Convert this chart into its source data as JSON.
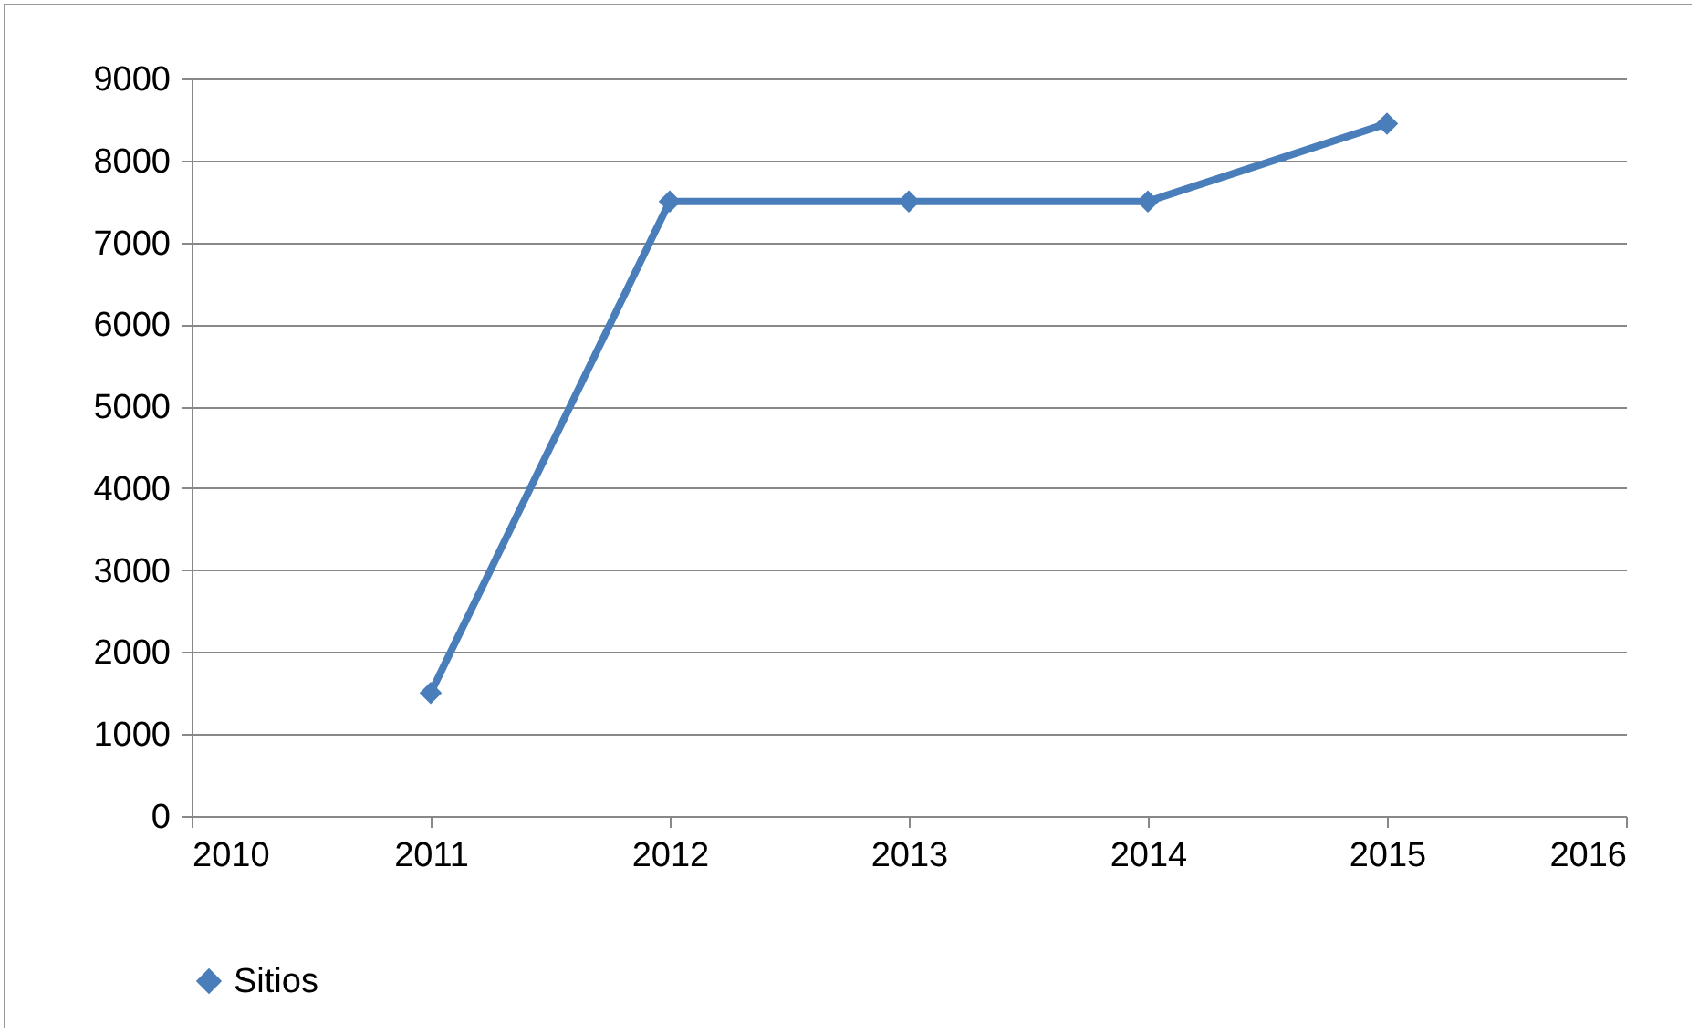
{
  "chart_data": {
    "type": "line",
    "x": [
      2011,
      2012,
      2013,
      2014,
      2015
    ],
    "series": [
      {
        "name": "Sitios",
        "color": "#4a7ebb",
        "values": [
          1500,
          7500,
          7500,
          7500,
          8450
        ]
      }
    ],
    "xlim": [
      2010,
      2016
    ],
    "xticks": [
      2010,
      2011,
      2012,
      2013,
      2014,
      2015,
      2016
    ],
    "ylim": [
      0,
      9000
    ],
    "yticks": [
      0,
      1000,
      2000,
      3000,
      4000,
      5000,
      6000,
      7000,
      8000,
      9000
    ],
    "grid": "y",
    "legend": "bottom",
    "marker": "diamond",
    "line_style": "solid"
  }
}
